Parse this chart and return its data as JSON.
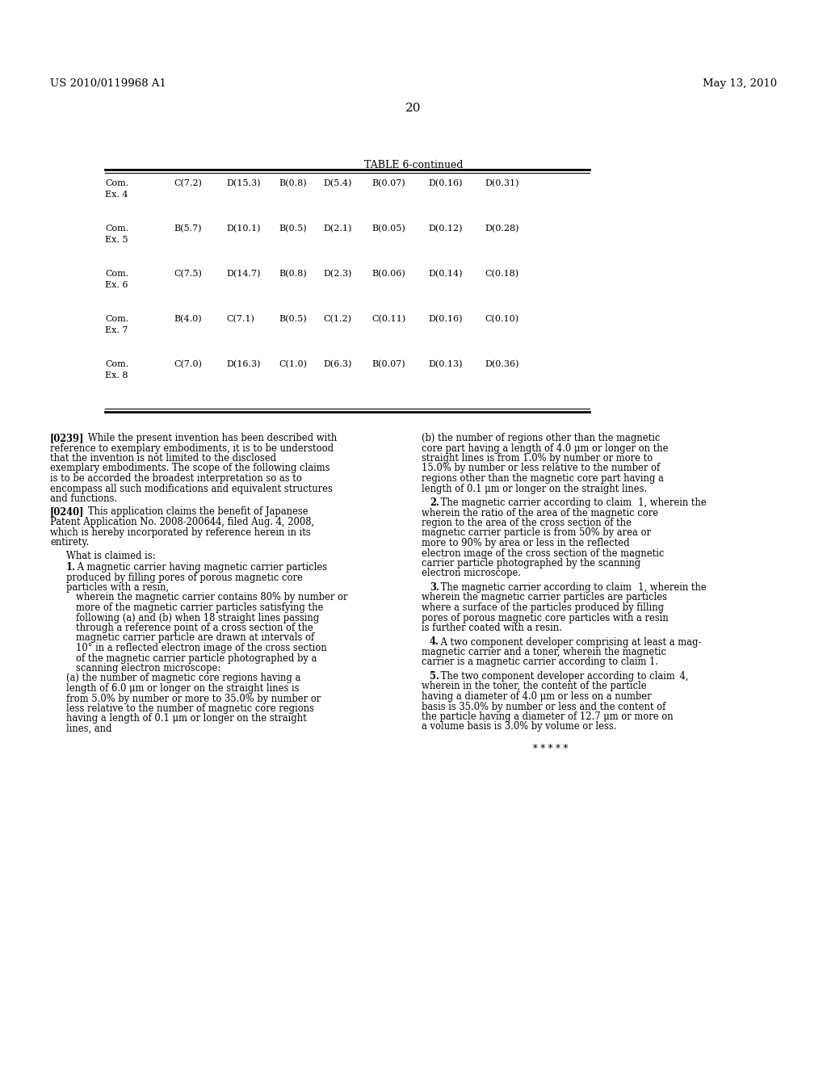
{
  "page_number": "20",
  "header_left": "US 2010/0119968 A1",
  "header_right": "May 13, 2010",
  "table_title": "TABLE 6-continued",
  "table_rows": [
    {
      "label": "Com.\nEx. 4",
      "cols": [
        "C(7.2)",
        "D(15.3)",
        "B(0.8)",
        "D(5.4)",
        "B(0.07)",
        "D(0.16)",
        "D(0.31)"
      ]
    },
    {
      "label": "Com.\nEx. 5",
      "cols": [
        "B(5.7)",
        "D(10.1)",
        "B(0.5)",
        "D(2.1)",
        "B(0.05)",
        "D(0.12)",
        "D(0.28)"
      ]
    },
    {
      "label": "Com.\nEx. 6",
      "cols": [
        "C(7.5)",
        "D(14.7)",
        "B(0.8)",
        "D(2.3)",
        "B(0.06)",
        "D(0.14)",
        "C(0.18)"
      ]
    },
    {
      "label": "Com.\nEx. 7",
      "cols": [
        "B(4.0)",
        "C(7.1)",
        "B(0.5)",
        "C(1.2)",
        "C(0.11)",
        "D(0.16)",
        "C(0.10)"
      ]
    },
    {
      "label": "Com.\nEx. 8",
      "cols": [
        "C(7.0)",
        "D(16.3)",
        "C(1.0)",
        "D(6.3)",
        "B(0.07)",
        "D(0.13)",
        "D(0.36)"
      ]
    }
  ],
  "paragraph_0239": "[0239]   While the present invention has been described with reference to exemplary embodiments, it is to be understood that the invention is not limited to the disclosed exemplary embodiments. The scope of the following claims is to be accorded the broadest interpretation so as to encompass all such modifications and equivalent structures and functions.",
  "paragraph_0240": "[0240]   This application claims the benefit of Japanese Patent Application No. 2008-200644, filed Aug. 4, 2008, which is hereby incorporated by reference herein in its entirety.",
  "what_claimed": "What is claimed is:",
  "claim_1_intro": "    1.  A magnetic carrier having magnetic carrier particles produced by filling pores of porous magnetic core particles with a resin,",
  "claim_1_wherein": "      wherein the magnetic carrier contains 80% by number or more of the magnetic carrier particles satisfying the following (a) and (b) when 18 straight lines passing through a reference point of a cross section of the magnetic carrier particle are drawn at intervals of 10° in a reflected electron image of the cross section of the magnetic carrier particle photographed by a scanning electron microscope:",
  "claim_1a": "   (a) the number of magnetic core regions having a length of 6.0 μm or longer on the straight lines is from 5.0% by number or more to 35.0% by number or less relative to the number of magnetic core regions having a length of 0.1 μm or longer on the straight lines, and",
  "claim_1b": "   (b) the number of regions other than the magnetic core part having a length of 4.0 μm or longer on the straight lines is from 1.0% by number or more to 15.0% by number or less relative to the number of regions other than the magnetic core part having a length of 0.1 μm or longer on the straight lines.",
  "claim_2": "    2.  The magnetic carrier according to claim 1, wherein the ratio of the area of the magnetic core region to the area of the cross section of the magnetic carrier particle is from 50% by area or more to 90% by area or less in the reflected electron image of the cross section of the magnetic carrier particle photographed by the scanning electron microscope.",
  "claim_3": "    3.  The magnetic carrier according to claim 1, wherein the magnetic carrier particles are particles where a surface of the particles produced by filling pores of porous magnetic core particles with a resin is further coated with a resin.",
  "claim_4": "    4.  A two component developer comprising at least a magnetic carrier and a toner, wherein the magnetic carrier is a magnetic carrier according to claim 1.",
  "claim_5": "    5.  The two component developer according to claim 4, wherein in the toner, the content of the particle having a diameter of 4.0 μm or less on a number basis is 35.0% by number or less and the content of the particle having a diameter of 12.7 μm or more on a volume basis is 3.0% by volume or less.",
  "asterisks": "* * * * *",
  "background_color": "#ffffff",
  "text_color": "#000000",
  "font_size_header": 9.5,
  "font_size_body": 8.5,
  "font_size_table": 8.0
}
